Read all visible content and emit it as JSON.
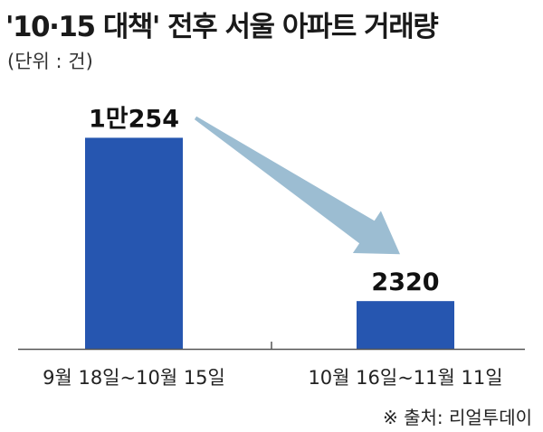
{
  "header": {
    "title": "'10·15 대책' 전후 서울 아파트 거래량",
    "unit": "(단위 : 건)"
  },
  "footer": {
    "source": "※ 출처: 리얼투데이"
  },
  "colors": {
    "bar": "#2656b0",
    "arrow": "#9cbdd2",
    "axis": "#555555"
  },
  "chart_data": {
    "type": "bar",
    "categories": [
      "9월 18일~10월 15일",
      "10월 16일~11월 11일"
    ],
    "values": [
      10254,
      2320
    ],
    "value_labels": [
      "1만254",
      "2320"
    ],
    "ylim": [
      0,
      10800
    ],
    "grid": false,
    "legend": "none",
    "annotations": [
      {
        "type": "arrow",
        "from": 0,
        "to": 1
      }
    ]
  }
}
